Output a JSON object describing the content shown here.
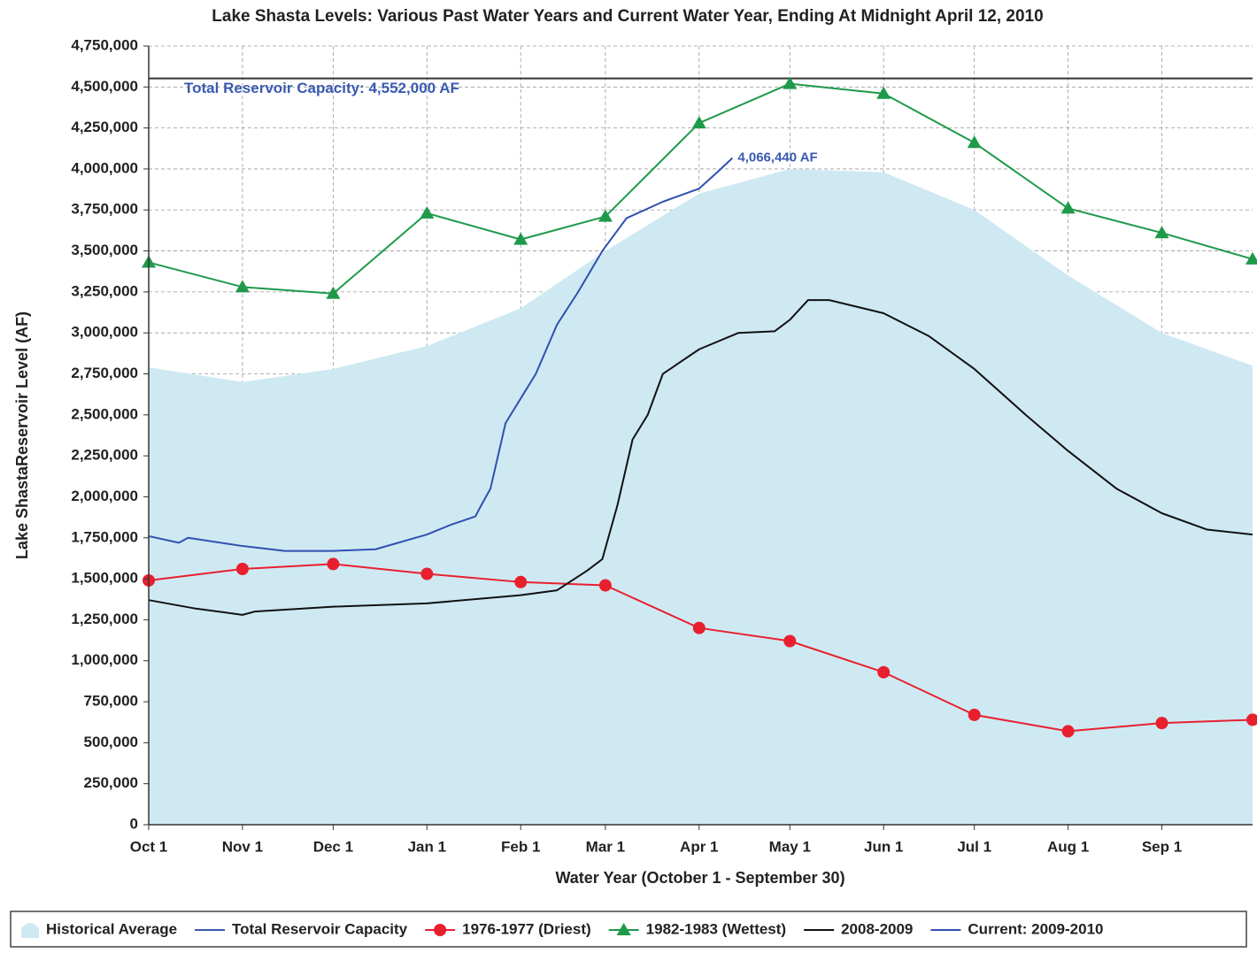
{
  "chart_data": {
    "type": "line",
    "title": "Lake Shasta Levels: Various Past Water Years and Current Water Year, Ending At Midnight April 12, 2010",
    "xlabel": "Water Year (October 1 - September 30)",
    "ylabel": "Lake ShastaReservoir Level (AF)",
    "xlim": [
      0,
      365
    ],
    "xticks": [
      {
        "value": 0,
        "label": "Oct 1"
      },
      {
        "value": 31,
        "label": "Nov 1"
      },
      {
        "value": 61,
        "label": "Dec 1"
      },
      {
        "value": 92,
        "label": "Jan 1"
      },
      {
        "value": 123,
        "label": "Feb 1"
      },
      {
        "value": 151,
        "label": "Mar 1"
      },
      {
        "value": 182,
        "label": "Apr 1"
      },
      {
        "value": 212,
        "label": "May 1"
      },
      {
        "value": 243,
        "label": "Jun 1"
      },
      {
        "value": 273,
        "label": "Jul 1"
      },
      {
        "value": 304,
        "label": "Aug 1"
      },
      {
        "value": 335,
        "label": "Sep 1"
      }
    ],
    "ylim": [
      0,
      4750000
    ],
    "yticks": [
      0,
      {
        "value": 250000,
        "label": "250,000"
      },
      {
        "value": 500000,
        "label": "500,000"
      },
      {
        "value": 750000,
        "label": "750,000"
      },
      {
        "value": 1000000,
        "label": "1,000,000"
      },
      {
        "value": 1250000,
        "label": "1,250,000"
      },
      {
        "value": 1500000,
        "label": "1,500,000"
      },
      {
        "value": 1750000,
        "label": "1,750,000"
      },
      {
        "value": 2000000,
        "label": "2,000,000"
      },
      {
        "value": 2250000,
        "label": "2,250,000"
      },
      {
        "value": 2500000,
        "label": "2,500,000"
      },
      {
        "value": 2750000,
        "label": "2,750,000"
      },
      {
        "value": 3000000,
        "label": "3,000,000"
      },
      {
        "value": 3250000,
        "label": "3,250,000"
      },
      {
        "value": 3500000,
        "label": "3,500,000"
      },
      {
        "value": 3750000,
        "label": "3,750,000"
      },
      {
        "value": 4000000,
        "label": "4,000,000"
      },
      {
        "value": 4250000,
        "label": "4,250,000"
      },
      {
        "value": 4500000,
        "label": "4,500,000"
      },
      {
        "value": 4750000,
        "label": "4,750,000"
      }
    ],
    "grid": true,
    "legend": "bottom",
    "series": [
      {
        "name": "Historical Average",
        "color": "#cfe9f3",
        "area": true,
        "x": [
          0,
          31,
          61,
          92,
          123,
          151,
          182,
          212,
          243,
          273,
          304,
          335,
          365
        ],
        "values": [
          2790000,
          2700000,
          2780000,
          2920000,
          3150000,
          3500000,
          3850000,
          4000000,
          3980000,
          3750000,
          3350000,
          3000000,
          2800000
        ]
      },
      {
        "name": "Total Reservoir Capacity",
        "color": "#333333",
        "legend_color": "#3a5ab0",
        "x": [
          0,
          365
        ],
        "values": [
          4552000,
          4552000
        ]
      },
      {
        "name": "1976-1977 (Driest)",
        "color": "#e8202e",
        "marker": "circle",
        "x": [
          0,
          31,
          61,
          92,
          123,
          151,
          182,
          212,
          243,
          273,
          304,
          335,
          365
        ],
        "values": [
          1490000,
          1560000,
          1590000,
          1530000,
          1480000,
          1460000,
          1200000,
          1120000,
          930000,
          670000,
          570000,
          620000,
          640000
        ]
      },
      {
        "name": "1982-1983 (Wettest)",
        "color": "#1e9a4a",
        "marker": "triangle",
        "x": [
          0,
          31,
          61,
          92,
          123,
          151,
          182,
          212,
          243,
          273,
          304,
          335,
          365
        ],
        "values": [
          3430000,
          3280000,
          3240000,
          3730000,
          3570000,
          3710000,
          4280000,
          4520000,
          4460000,
          4160000,
          3760000,
          3610000,
          3450000
        ]
      },
      {
        "name": "2008-2009",
        "color": "#111111",
        "x": [
          0,
          15,
          31,
          35,
          61,
          92,
          123,
          135,
          145,
          150,
          155,
          160,
          165,
          170,
          182,
          195,
          207,
          212,
          218,
          225,
          243,
          258,
          273,
          290,
          304,
          320,
          335,
          350,
          365
        ],
        "values": [
          1370000,
          1320000,
          1280000,
          1300000,
          1330000,
          1350000,
          1400000,
          1430000,
          1550000,
          1620000,
          1950000,
          2350000,
          2500000,
          2750000,
          2900000,
          3000000,
          3010000,
          3080000,
          3200000,
          3200000,
          3120000,
          2980000,
          2780000,
          2500000,
          2280000,
          2050000,
          1900000,
          1800000,
          1770000
        ]
      },
      {
        "name": "Current: 2009-2010",
        "color": "#3050b0",
        "x": [
          0,
          10,
          13,
          31,
          45,
          61,
          75,
          92,
          100,
          108,
          110,
          113,
          118,
          123,
          128,
          135,
          142,
          150,
          158,
          170,
          182,
          188,
          193
        ],
        "values": [
          1760000,
          1720000,
          1750000,
          1700000,
          1670000,
          1670000,
          1680000,
          1770000,
          1830000,
          1880000,
          1950000,
          2050000,
          2450000,
          2600000,
          2750000,
          3050000,
          3250000,
          3500000,
          3700000,
          3800000,
          3880000,
          3980000,
          4066440
        ]
      }
    ],
    "annotations": [
      {
        "text": "Total Reservoir Capacity: 4,552,000 AF",
        "series": 1
      },
      {
        "text": "4,066,440 AF",
        "series": 5
      }
    ]
  }
}
